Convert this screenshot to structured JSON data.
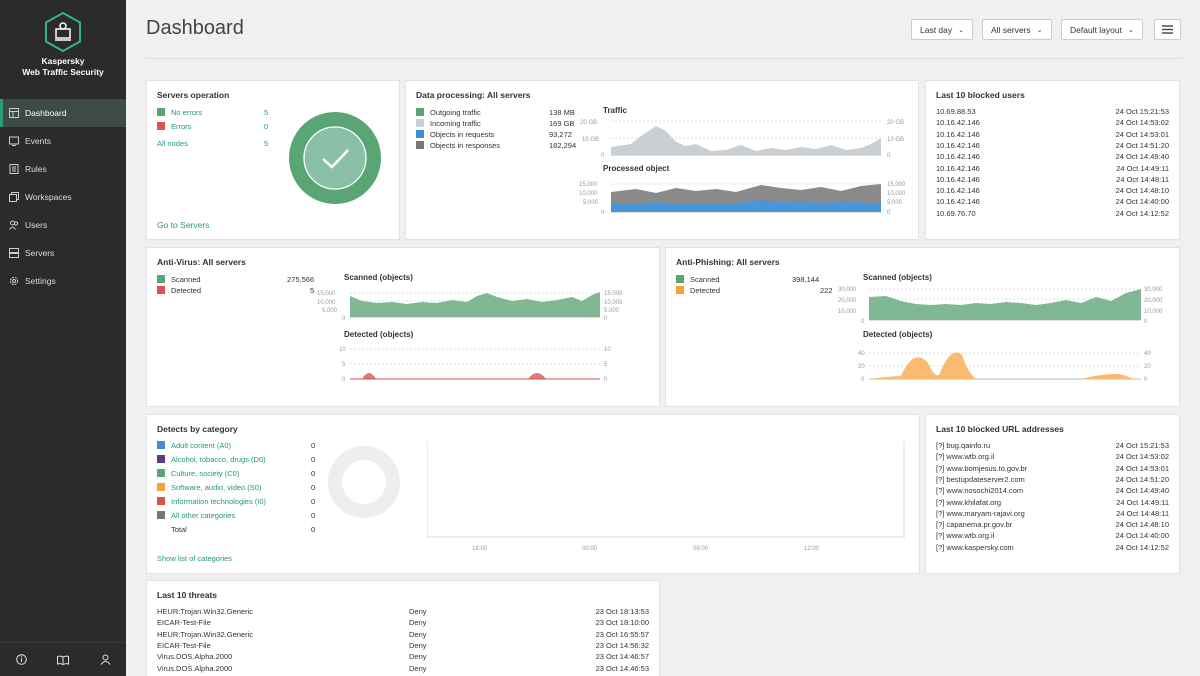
{
  "brand": {
    "line1": "Kaspersky",
    "line2": "Web Traffic Security"
  },
  "nav": [
    {
      "label": "Dashboard",
      "icon": "dashboard-icon"
    },
    {
      "label": "Events",
      "icon": "events-icon"
    },
    {
      "label": "Rules",
      "icon": "rules-icon"
    },
    {
      "label": "Workspaces",
      "icon": "workspaces-icon"
    },
    {
      "label": "Users",
      "icon": "users-icon"
    },
    {
      "label": "Servers",
      "icon": "servers-icon"
    },
    {
      "label": "Settings",
      "icon": "settings-icon"
    }
  ],
  "footer_icons": [
    "info-icon",
    "book-icon",
    "user-icon"
  ],
  "header": {
    "title": "Dashboard",
    "period": "Last day",
    "servers": "All servers",
    "layout": "Default layout"
  },
  "colors": {
    "accent": "#22997a",
    "green": "#5aa574",
    "red": "#d9534f",
    "blue": "#3f8fd2",
    "orange": "#f5a13f",
    "gray": "#777777",
    "lightgray": "#c9cfd2"
  },
  "servers_op": {
    "title": "Servers operation",
    "rows": [
      {
        "label": "No errors",
        "value": "5",
        "color": "#5aa574"
      },
      {
        "label": "Errors",
        "value": "0",
        "color": "#d9534f"
      },
      {
        "label": "All nodes",
        "value": "5"
      }
    ],
    "link": "Go to Servers"
  },
  "data_proc": {
    "title": "Data processing:",
    "scope": "All servers",
    "rows": [
      {
        "label": "Outgoing traffic",
        "value": "138 MB",
        "color": "#5aa574"
      },
      {
        "label": "Incoming traffic",
        "value": "169 GB",
        "color": "#c9cfd2"
      },
      {
        "label": "Objects in requests",
        "value": "93,272",
        "color": "#3f8fd2"
      },
      {
        "label": "Objects in responses",
        "value": "182,294",
        "color": "#777777"
      }
    ],
    "traffic_title": "Traffic",
    "traffic_ticks": [
      "20 GB",
      "10 GB",
      "0"
    ],
    "processed_title": "Processed object",
    "processed_ticks": [
      "15,000",
      "10,000",
      "5,000",
      "0"
    ]
  },
  "blocked_users": {
    "title": "Last 10 blocked users",
    "rows": [
      {
        "ip": "10.69.88.53",
        "time": "24 Oct 15:21:53"
      },
      {
        "ip": "10.16.42.146",
        "time": "24 Oct 14:53:02"
      },
      {
        "ip": "10.16.42.146",
        "time": "24 Oct 14:53:01"
      },
      {
        "ip": "10.16.42.146",
        "time": "24 Oct 14:51:20"
      },
      {
        "ip": "10.16.42.146",
        "time": "24 Oct 14:49:40"
      },
      {
        "ip": "10.16.42.146",
        "time": "24 Oct 14:49:11"
      },
      {
        "ip": "10.16.42.146",
        "time": "24 Oct 14:48:11"
      },
      {
        "ip": "10.16.42.146",
        "time": "24 Oct 14:48:10"
      },
      {
        "ip": "10.16.42.146",
        "time": "24 Oct 14:40:00"
      },
      {
        "ip": "10.69.76.70",
        "time": "24 Oct 14:12:52"
      }
    ]
  },
  "antivirus": {
    "title": "Anti-Virus:",
    "scope": "All servers",
    "rows": [
      {
        "label": "Scanned",
        "value": "275,566",
        "color": "#5aa574"
      },
      {
        "label": "Detected",
        "value": "5",
        "color": "#d9534f"
      }
    ],
    "scanned_title": "Scanned (objects)",
    "scanned_ticks": [
      "15,000",
      "10,000",
      "5,000",
      "0"
    ],
    "detected_title": "Detected (objects)",
    "detected_ticks": [
      "10",
      "5",
      "0"
    ]
  },
  "antiphishing": {
    "title": "Anti-Phishing:",
    "scope": "All servers",
    "rows": [
      {
        "label": "Scanned",
        "value": "398,144",
        "color": "#5aa574"
      },
      {
        "label": "Detected",
        "value": "222",
        "color": "#f5a13f"
      }
    ],
    "scanned_title": "Scanned (objects)",
    "scanned_ticks": [
      "30,000",
      "20,000",
      "10,000",
      "0"
    ],
    "detected_title": "Detected (objects)",
    "detected_ticks": [
      "40",
      "20",
      "0"
    ]
  },
  "categories": {
    "title": "Detects by category",
    "rows": [
      {
        "label": "Adult content (A0)",
        "value": "0",
        "color": "#3f8fd2"
      },
      {
        "label": "Alcohol, tobacco, drugs (D0)",
        "value": "0",
        "color": "#5b3a8e"
      },
      {
        "label": "Culture, society (C0)",
        "value": "0",
        "color": "#5aa574"
      },
      {
        "label": "Software, audio, video (S0)",
        "value": "0",
        "color": "#f5a13f"
      },
      {
        "label": "Information technologies (I0)",
        "value": "0",
        "color": "#d9534f"
      },
      {
        "label": "All other categories",
        "value": "0",
        "color": "#777777"
      }
    ],
    "total_label": "Total",
    "total_value": "0",
    "link": "Show list of categories",
    "x_ticks": [
      "18:00",
      "00:00",
      "06:00",
      "12:00"
    ]
  },
  "blocked_urls": {
    "title": "Last 10 blocked URL addresses",
    "rows": [
      {
        "url": "[?] bug.qainfo.ru",
        "time": "24 Oct 15:21:53"
      },
      {
        "url": "[?] www.wtb.org.il",
        "time": "24 Oct 14:53:02"
      },
      {
        "url": "[?] www.bomjesus.to.gov.br",
        "time": "24 Oct 14:53:01"
      },
      {
        "url": "[?] bestupdateserver2.com",
        "time": "24 Oct 14:51:20"
      },
      {
        "url": "[?] www.nosochi2014.com",
        "time": "24 Oct 14:49:40"
      },
      {
        "url": "[?] www.khilafat.org",
        "time": "24 Oct 14:49:11"
      },
      {
        "url": "[?] www.maryam-rajavi.org",
        "time": "24 Oct 14:48:11"
      },
      {
        "url": "[?] capanema.pr.gov.br",
        "time": "24 Oct 14:48:10"
      },
      {
        "url": "[?] www.wtb.org.il",
        "time": "24 Oct 14:40:00"
      },
      {
        "url": "[?] www.kaspersky.com",
        "time": "24 Oct 14:12:52"
      }
    ]
  },
  "threats": {
    "title": "Last 10 threats",
    "rows": [
      {
        "name": "HEUR:Trojan.Win32.Generic",
        "action": "Deny",
        "time": "23 Oct 18:13:53"
      },
      {
        "name": "EICAR-Test-File",
        "action": "Deny",
        "time": "23 Oct 18:10:00"
      },
      {
        "name": "HEUR:Trojan.Win32.Generic",
        "action": "Deny",
        "time": "23 Oct 16:55:57"
      },
      {
        "name": "EICAR-Test-File",
        "action": "Deny",
        "time": "23 Oct 14:56:32"
      },
      {
        "name": "Virus.DOS.Alpha.2000",
        "action": "Deny",
        "time": "23 Oct 14:46:57"
      },
      {
        "name": "Virus.DOS.Alpha.2000",
        "action": "Deny",
        "time": "23 Oct 14:46:53"
      }
    ]
  }
}
